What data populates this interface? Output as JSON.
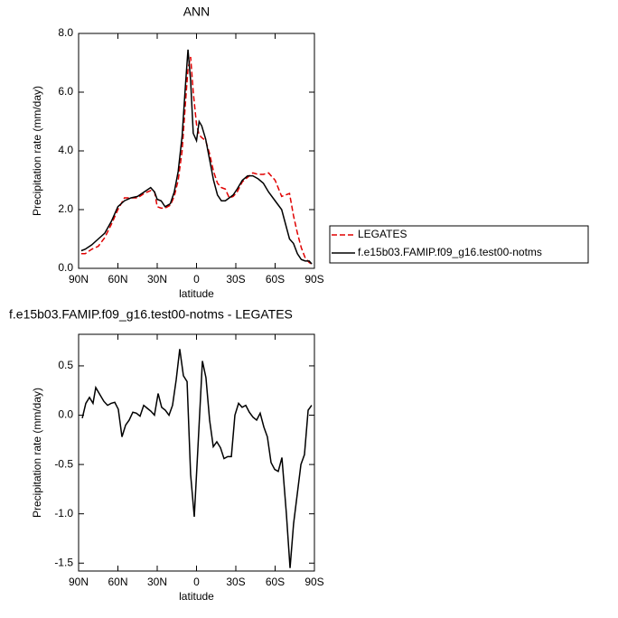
{
  "chart_data": [
    {
      "type": "line",
      "title": "ANN",
      "xlabel": "latitude",
      "ylabel": "Precipitation rate (mm/day)",
      "legend": "right",
      "xlim": [
        90,
        -90
      ],
      "xticks": [
        {
          "value": 90,
          "label": "90N"
        },
        {
          "value": 60,
          "label": "60N"
        },
        {
          "value": 30,
          "label": "30N"
        },
        0,
        {
          "value": -30,
          "label": "30S"
        },
        {
          "value": -60,
          "label": "60S"
        },
        {
          "value": -90,
          "label": "90S"
        }
      ],
      "ylim": [
        0,
        8
      ],
      "yticks": [
        {
          "value": 0,
          "label": "0.0"
        },
        {
          "value": 2,
          "label": "2.0"
        },
        {
          "value": 4,
          "label": "4.0"
        },
        {
          "value": 6,
          "label": "6.0"
        },
        {
          "value": 8,
          "label": "8.0"
        }
      ],
      "x": [
        88,
        85,
        80,
        75,
        70,
        65,
        60,
        55,
        50,
        45,
        40,
        35,
        32,
        30,
        27,
        24,
        20,
        17,
        14,
        11,
        8.5,
        6.5,
        4.5,
        2.5,
        0,
        -2,
        -4,
        -7,
        -10,
        -13,
        -16,
        -19,
        -22,
        -25,
        -28,
        -31,
        -35,
        -39,
        -43,
        -47,
        -51,
        -55,
        -60,
        -65,
        -68,
        -71,
        -74,
        -77,
        -80,
        -83,
        -86,
        -88
      ],
      "series": [
        {
          "name": "LEGATES",
          "color": "#e00000",
          "line_style": "dashed",
          "values": [
            0.5,
            0.5,
            0.65,
            0.75,
            1.05,
            1.5,
            2.0,
            2.4,
            2.4,
            2.4,
            2.55,
            2.65,
            2.6,
            2.1,
            2.05,
            2.05,
            2.15,
            2.45,
            3.0,
            4.0,
            5.6,
            6.8,
            7.2,
            6.0,
            4.9,
            4.55,
            4.45,
            4.35,
            3.9,
            3.3,
            2.9,
            2.75,
            2.7,
            2.4,
            2.45,
            2.6,
            2.95,
            3.1,
            3.25,
            3.2,
            3.2,
            3.25,
            3.0,
            2.45,
            2.5,
            2.55,
            1.8,
            1.2,
            0.7,
            0.35,
            0.2,
            0.15
          ]
        },
        {
          "name": "f.e15b03.FAMIP.f09_g16.test00-notms",
          "color": "#000000",
          "line_style": "solid",
          "values": [
            0.6,
            0.65,
            0.8,
            1.0,
            1.2,
            1.6,
            2.1,
            2.3,
            2.4,
            2.45,
            2.6,
            2.75,
            2.6,
            2.35,
            2.3,
            2.1,
            2.2,
            2.6,
            3.3,
            4.5,
            6.2,
            7.45,
            6.4,
            4.6,
            4.35,
            5.0,
            4.85,
            4.4,
            3.7,
            3.0,
            2.5,
            2.3,
            2.3,
            2.4,
            2.5,
            2.7,
            3.0,
            3.15,
            3.15,
            3.05,
            2.9,
            2.6,
            2.3,
            2.0,
            1.5,
            1.0,
            0.85,
            0.5,
            0.3,
            0.25,
            0.25,
            0.15
          ]
        }
      ]
    },
    {
      "type": "line",
      "title": "f.e15b03.FAMIP.f09_g16.test00-notms - LEGATES",
      "xlabel": "latitude",
      "ylabel": "Precipitation rate (mm/day)",
      "xlim": [
        90,
        -90
      ],
      "xticks": [
        {
          "value": 90,
          "label": "90N"
        },
        {
          "value": 60,
          "label": "60N"
        },
        {
          "value": 30,
          "label": "30N"
        },
        0,
        {
          "value": -30,
          "label": "30S"
        },
        {
          "value": -60,
          "label": "60S"
        },
        {
          "value": -90,
          "label": "90S"
        }
      ],
      "ylim": [
        -1.58,
        0.82
      ],
      "yticks": [
        0.5,
        {
          "value": 0,
          "label": "0.0"
        },
        -0.5,
        {
          "value": -1,
          "label": "-1.0"
        },
        -1.5
      ],
      "x": [
        87.2,
        84.5,
        81.7,
        79.0,
        76.9,
        73.4,
        70.7,
        67.9,
        65.2,
        62.4,
        59.7,
        56.9,
        54.1,
        51.4,
        48.6,
        45.9,
        43.1,
        40.3,
        37.6,
        34.8,
        32.1,
        29.3,
        26.6,
        23.8,
        21.0,
        18.3,
        15.5,
        12.8,
        10.0,
        7.2,
        4.5,
        1.7,
        -1.0,
        -4.5,
        -7.2,
        -10.0,
        -12.8,
        -15.5,
        -18.3,
        -21.0,
        -23.8,
        -26.6,
        -29.3,
        -32.1,
        -34.8,
        -37.6,
        -40.3,
        -43.1,
        -45.9,
        -48.6,
        -51.4,
        -54.1,
        -56.9,
        -59.7,
        -62.4,
        -65.2,
        -68.6,
        -71.4,
        -74.1,
        -76.9,
        -79.7,
        -82.4,
        -85.2,
        -87.9
      ],
      "series": [
        {
          "color": "#000000",
          "line_style": "solid",
          "values": [
            -0.03,
            0.12,
            0.18,
            0.12,
            0.28,
            0.2,
            0.14,
            0.1,
            0.12,
            0.13,
            0.06,
            -0.22,
            -0.1,
            -0.05,
            0.03,
            0.02,
            -0.01,
            0.1,
            0.07,
            0.04,
            0.0,
            0.22,
            0.08,
            0.05,
            0.0,
            0.1,
            0.36,
            0.67,
            0.4,
            0.34,
            -0.6,
            -1.03,
            -0.35,
            0.55,
            0.38,
            -0.05,
            -0.32,
            -0.27,
            -0.33,
            -0.44,
            -0.42,
            -0.42,
            0.0,
            0.12,
            0.08,
            0.1,
            0.03,
            -0.02,
            -0.05,
            0.02,
            -0.12,
            -0.22,
            -0.48,
            -0.55,
            -0.57,
            -0.43,
            -1.0,
            -1.55,
            -1.1,
            -0.8,
            -0.5,
            -0.4,
            0.05,
            0.1
          ]
        }
      ]
    }
  ]
}
